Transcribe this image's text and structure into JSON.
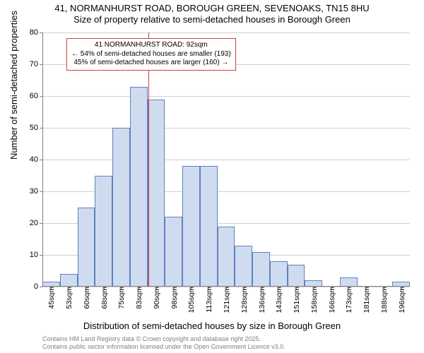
{
  "title": {
    "line1": "41, NORMANHURST ROAD, BOROUGH GREEN, SEVENOAKS, TN15 8HU",
    "line2": "Size of property relative to semi-detached houses in Borough Green"
  },
  "chart": {
    "type": "histogram",
    "ylabel": "Number of semi-detached properties",
    "xlabel": "Distribution of semi-detached houses by size in Borough Green",
    "ylim": [
      0,
      80
    ],
    "ytick_step": 10,
    "yticks": [
      0,
      10,
      20,
      30,
      40,
      50,
      60,
      70,
      80
    ],
    "bar_fill": "#cfdcf0",
    "bar_border": "#6080c0",
    "grid_color": "#d0d0d0",
    "background_color": "#ffffff",
    "axis_color": "#808080",
    "categories": [
      "45sqm",
      "53sqm",
      "60sqm",
      "68sqm",
      "75sqm",
      "83sqm",
      "90sqm",
      "98sqm",
      "105sqm",
      "113sqm",
      "121sqm",
      "128sqm",
      "136sqm",
      "143sqm",
      "151sqm",
      "158sqm",
      "166sqm",
      "173sqm",
      "181sqm",
      "188sqm",
      "196sqm"
    ],
    "values": [
      1.5,
      4,
      25,
      35,
      50,
      63,
      59,
      22,
      38,
      38,
      19,
      13,
      11,
      8,
      7,
      2,
      0,
      3,
      0,
      0,
      1.5
    ],
    "bar_width_ratio": 1.0
  },
  "reference_line": {
    "color": "#d04040",
    "position_index": 6.05
  },
  "annotation": {
    "border_color": "#d04040",
    "line1": "41 NORMANHURST ROAD: 92sqm",
    "line2": "← 54% of semi-detached houses are smaller (193)",
    "line3": "45% of semi-detached houses are larger (160) →"
  },
  "footer": {
    "line1": "Contains HM Land Registry data © Crown copyright and database right 2025.",
    "line2": "Contains public sector information licensed under the Open Government Licence v3.0."
  }
}
